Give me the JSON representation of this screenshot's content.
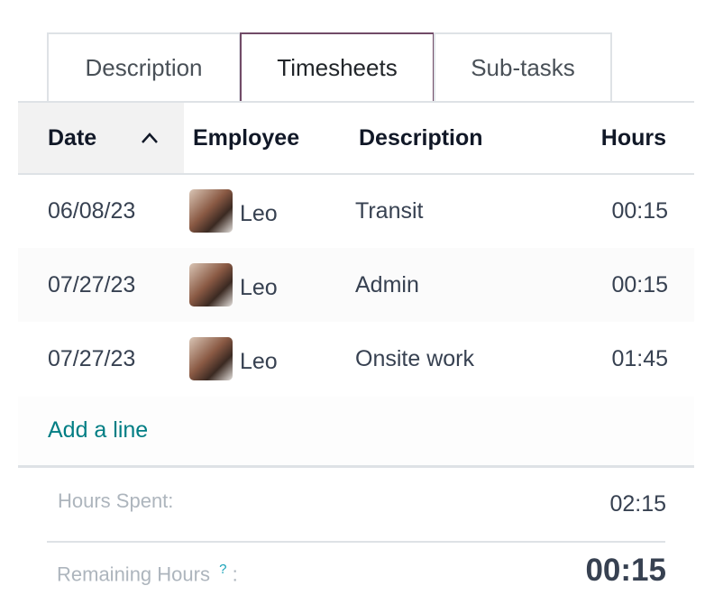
{
  "tabs": [
    {
      "label": "Description"
    },
    {
      "label": "Timesheets",
      "active": true
    },
    {
      "label": "Sub-tasks"
    }
  ],
  "table": {
    "headers": {
      "date": "Date",
      "employee": "Employee",
      "description": "Description",
      "hours": "Hours"
    },
    "sort_icon": "chevron-up-icon",
    "rows": [
      {
        "date": "06/08/23",
        "employee": "Leo",
        "description": "Transit",
        "hours": "00:15"
      },
      {
        "date": "07/27/23",
        "employee": "Leo",
        "description": "Admin",
        "hours": "00:15"
      },
      {
        "date": "07/27/23",
        "employee": "Leo",
        "description": "Onsite work",
        "hours": "01:45"
      }
    ],
    "add_line": "Add a line"
  },
  "summary": {
    "hours_spent_label": "Hours Spent:",
    "hours_spent": "02:15",
    "remaining_label": "Remaining Hours",
    "remaining_help": "?",
    "remaining_colon": ":",
    "remaining": "00:15"
  },
  "colors": {
    "accent": "#714b67",
    "link": "#017e84"
  }
}
